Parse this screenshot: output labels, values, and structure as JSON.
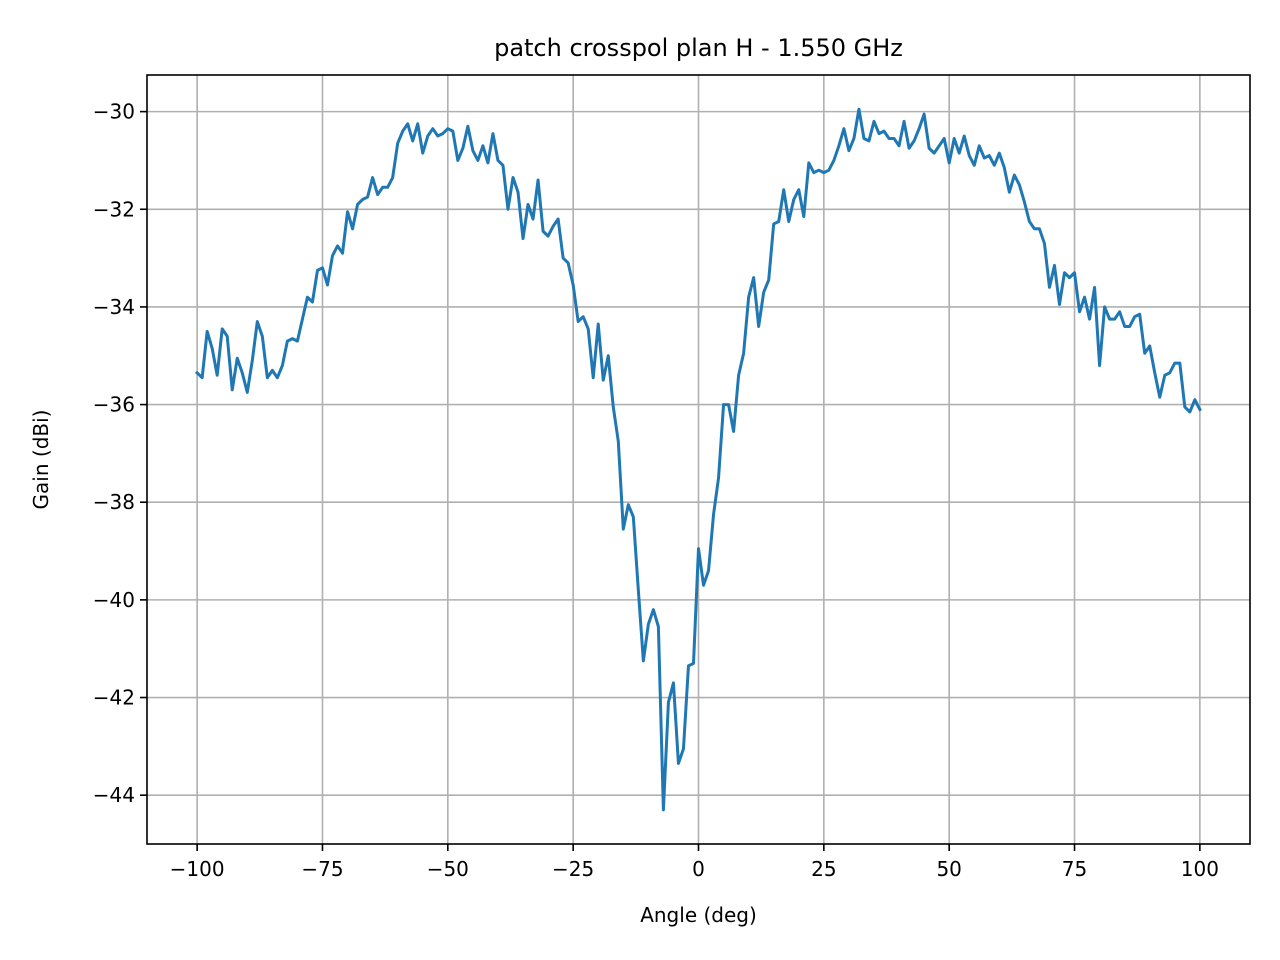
{
  "chart_data": {
    "type": "line",
    "title": "patch crosspol plan H - 1.550 GHz",
    "xlabel": "Angle (deg)",
    "ylabel": "Gain (dBi)",
    "xlim": [
      -110,
      110
    ],
    "ylim": [
      -45,
      -29.25
    ],
    "grid": true,
    "xticks": [
      -100,
      -75,
      -50,
      -25,
      0,
      25,
      50,
      75,
      100
    ],
    "xtick_labels": [
      "−100",
      "−75",
      "−50",
      "−25",
      "0",
      "25",
      "50",
      "75",
      "100"
    ],
    "yticks": [
      -44,
      -42,
      -40,
      -38,
      -36,
      -34,
      -32,
      -30
    ],
    "ytick_labels": [
      "−44",
      "−42",
      "−40",
      "−38",
      "−36",
      "−34",
      "−32",
      "−30"
    ],
    "line_color": "#1f77b4",
    "series": [
      {
        "x": [
          -100,
          -99,
          -98,
          -97,
          -96,
          -95,
          -94,
          -93,
          -92,
          -91,
          -90,
          -89,
          -88,
          -87,
          -86,
          -85,
          -84,
          -83,
          -82,
          -81,
          -80,
          -79,
          -78,
          -77,
          -76,
          -75,
          -74,
          -73,
          -72,
          -71,
          -70,
          -69,
          -68,
          -67,
          -66,
          -65,
          -64,
          -63,
          -62,
          -61,
          -60,
          -59,
          -58,
          -57,
          -56,
          -55,
          -54,
          -53,
          -52,
          -51,
          -50,
          -49,
          -48,
          -47,
          -46,
          -45,
          -44,
          -43,
          -42,
          -41,
          -40,
          -39,
          -38,
          -37,
          -36,
          -35,
          -34,
          -33,
          -32,
          -31,
          -30,
          -29,
          -28,
          -27,
          -26,
          -25,
          -24,
          -23,
          -22,
          -21,
          -20,
          -19,
          -18,
          -17,
          -16,
          -15,
          -14,
          -13,
          -12,
          -11,
          -10,
          -9,
          -8,
          -7,
          -6,
          -5,
          -4,
          -3,
          -2,
          -1,
          0,
          1,
          2,
          3,
          4,
          5,
          6,
          7,
          8,
          9,
          10,
          11,
          12,
          13,
          14,
          15,
          16,
          17,
          18,
          19,
          20,
          21,
          22,
          23,
          24,
          25,
          26,
          27,
          28,
          29,
          30,
          31,
          32,
          33,
          34,
          35,
          36,
          37,
          38,
          39,
          40,
          41,
          42,
          43,
          44,
          45,
          46,
          47,
          48,
          49,
          50,
          51,
          52,
          53,
          54,
          55,
          56,
          57,
          58,
          59,
          60,
          61,
          62,
          63,
          64,
          65,
          66,
          67,
          68,
          69,
          70,
          71,
          72,
          73,
          74,
          75,
          76,
          77,
          78,
          79,
          80,
          81,
          82,
          83,
          84,
          85,
          86,
          87,
          88,
          89,
          90,
          91,
          92,
          93,
          94,
          95,
          96,
          97,
          98,
          99,
          100
        ],
        "y": [
          -35.35,
          -35.45,
          -34.5,
          -34.85,
          -35.4,
          -34.45,
          -34.6,
          -35.7,
          -35.05,
          -35.35,
          -35.75,
          -35.1,
          -34.3,
          -34.6,
          -35.45,
          -35.3,
          -35.45,
          -35.2,
          -34.7,
          -34.65,
          -34.7,
          -34.25,
          -33.8,
          -33.9,
          -33.25,
          -33.2,
          -33.55,
          -32.95,
          -32.75,
          -32.9,
          -32.05,
          -32.4,
          -31.9,
          -31.8,
          -31.75,
          -31.35,
          -31.7,
          -31.55,
          -31.55,
          -31.35,
          -30.65,
          -30.4,
          -30.25,
          -30.6,
          -30.25,
          -30.85,
          -30.5,
          -30.35,
          -30.5,
          -30.45,
          -30.35,
          -30.4,
          -31.0,
          -30.75,
          -30.3,
          -30.8,
          -31.0,
          -30.7,
          -31.05,
          -30.45,
          -31.0,
          -31.1,
          -32.0,
          -31.35,
          -31.65,
          -32.6,
          -31.9,
          -32.2,
          -31.4,
          -32.45,
          -32.55,
          -32.35,
          -32.2,
          -33.0,
          -33.1,
          -33.55,
          -34.3,
          -34.2,
          -34.45,
          -35.45,
          -34.35,
          -35.5,
          -35.0,
          -36.05,
          -36.75,
          -38.55,
          -38.05,
          -38.3,
          -39.8,
          -41.25,
          -40.5,
          -40.2,
          -40.55,
          -44.3,
          -42.1,
          -41.7,
          -43.35,
          -43.05,
          -41.35,
          -41.3,
          -38.95,
          -39.7,
          -39.4,
          -38.25,
          -37.5,
          -36.0,
          -36.0,
          -36.55,
          -35.4,
          -34.95,
          -33.8,
          -33.4,
          -34.4,
          -33.7,
          -33.45,
          -32.3,
          -32.25,
          -31.6,
          -32.25,
          -31.8,
          -31.6,
          -32.15,
          -31.05,
          -31.25,
          -31.2,
          -31.25,
          -31.2,
          -31.0,
          -30.7,
          -30.35,
          -30.8,
          -30.55,
          -29.95,
          -30.55,
          -30.6,
          -30.2,
          -30.45,
          -30.4,
          -30.55,
          -30.55,
          -30.7,
          -30.2,
          -30.75,
          -30.6,
          -30.35,
          -30.05,
          -30.75,
          -30.85,
          -30.7,
          -30.55,
          -31.05,
          -30.55,
          -30.85,
          -30.5,
          -30.9,
          -31.1,
          -30.7,
          -30.95,
          -30.9,
          -31.1,
          -30.85,
          -31.15,
          -31.65,
          -31.3,
          -31.5,
          -31.85,
          -32.25,
          -32.4,
          -32.4,
          -32.7,
          -33.6,
          -33.15,
          -33.95,
          -33.3,
          -33.4,
          -33.3,
          -34.1,
          -33.8,
          -34.25,
          -33.6,
          -35.2,
          -34.0,
          -34.25,
          -34.25,
          -34.1,
          -34.4,
          -34.4,
          -34.2,
          -34.15,
          -34.95,
          -34.8,
          -35.35,
          -35.85,
          -35.4,
          -35.35,
          -35.15,
          -35.15,
          -36.05,
          -36.15,
          -35.9,
          -36.1
        ]
      }
    ]
  }
}
